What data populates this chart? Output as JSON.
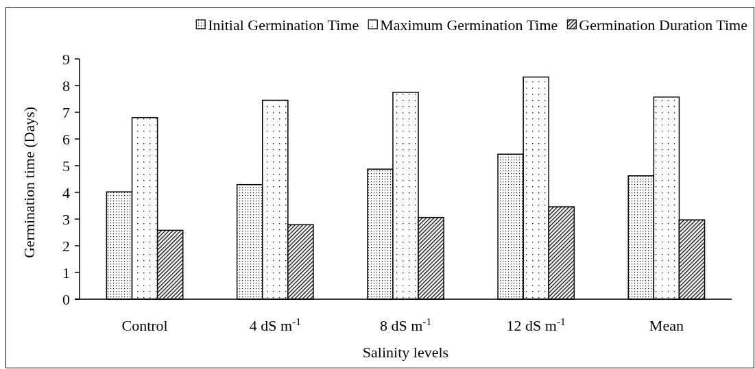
{
  "chart_data": {
    "type": "bar",
    "xlabel": "Salinity levels",
    "ylabel": "Germination time (Days)",
    "categories": [
      "Control",
      "4 dS m$^{-1}$",
      "8 dS m$^{-1}$",
      "12 dS m$^{-1}$",
      "Mean"
    ],
    "series": [
      {
        "name": "Initial Germination Time",
        "color": "#000000",
        "values": [
          4.02,
          4.29,
          4.87,
          5.43,
          4.62
        ]
      },
      {
        "name": "Maximum Germination Time",
        "color": "#000000",
        "values": [
          6.8,
          7.45,
          7.75,
          8.32,
          7.57
        ]
      },
      {
        "name": "Germination Duration Time",
        "color": "#000000",
        "values": [
          2.58,
          2.79,
          3.06,
          3.46,
          2.97
        ]
      }
    ],
    "ylim": [
      0,
      9
    ],
    "yticks": [
      0,
      1,
      2,
      3,
      4,
      5,
      6,
      7,
      8,
      9
    ],
    "grid": false,
    "legend": "top"
  }
}
